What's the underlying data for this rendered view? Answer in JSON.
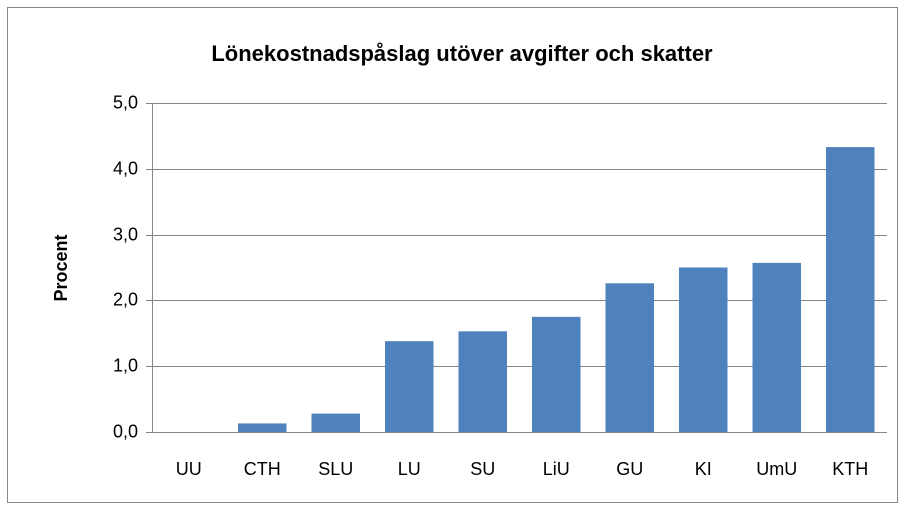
{
  "chart_data": {
    "type": "bar",
    "title": "Lönekostnadspåslag utöver avgifter och skatter",
    "y_label": "Procent",
    "categories": [
      "UU",
      "CTH",
      "SLU",
      "LU",
      "SU",
      "LiU",
      "GU",
      "KI",
      "UmU",
      "KTH"
    ],
    "values": [
      0,
      0.13,
      0.28,
      1.38,
      1.53,
      1.75,
      2.26,
      2.5,
      2.57,
      4.33
    ],
    "color": "#4f81bd",
    "ylim": [
      0,
      5
    ],
    "yticks": [
      {
        "value": 0,
        "label": "0,0"
      },
      {
        "value": 1,
        "label": "1,0"
      },
      {
        "value": 2,
        "label": "2,0"
      },
      {
        "value": 3,
        "label": "3,0"
      },
      {
        "value": 4,
        "label": "4,0"
      },
      {
        "value": 5,
        "label": "5,0"
      }
    ],
    "grid": true
  }
}
